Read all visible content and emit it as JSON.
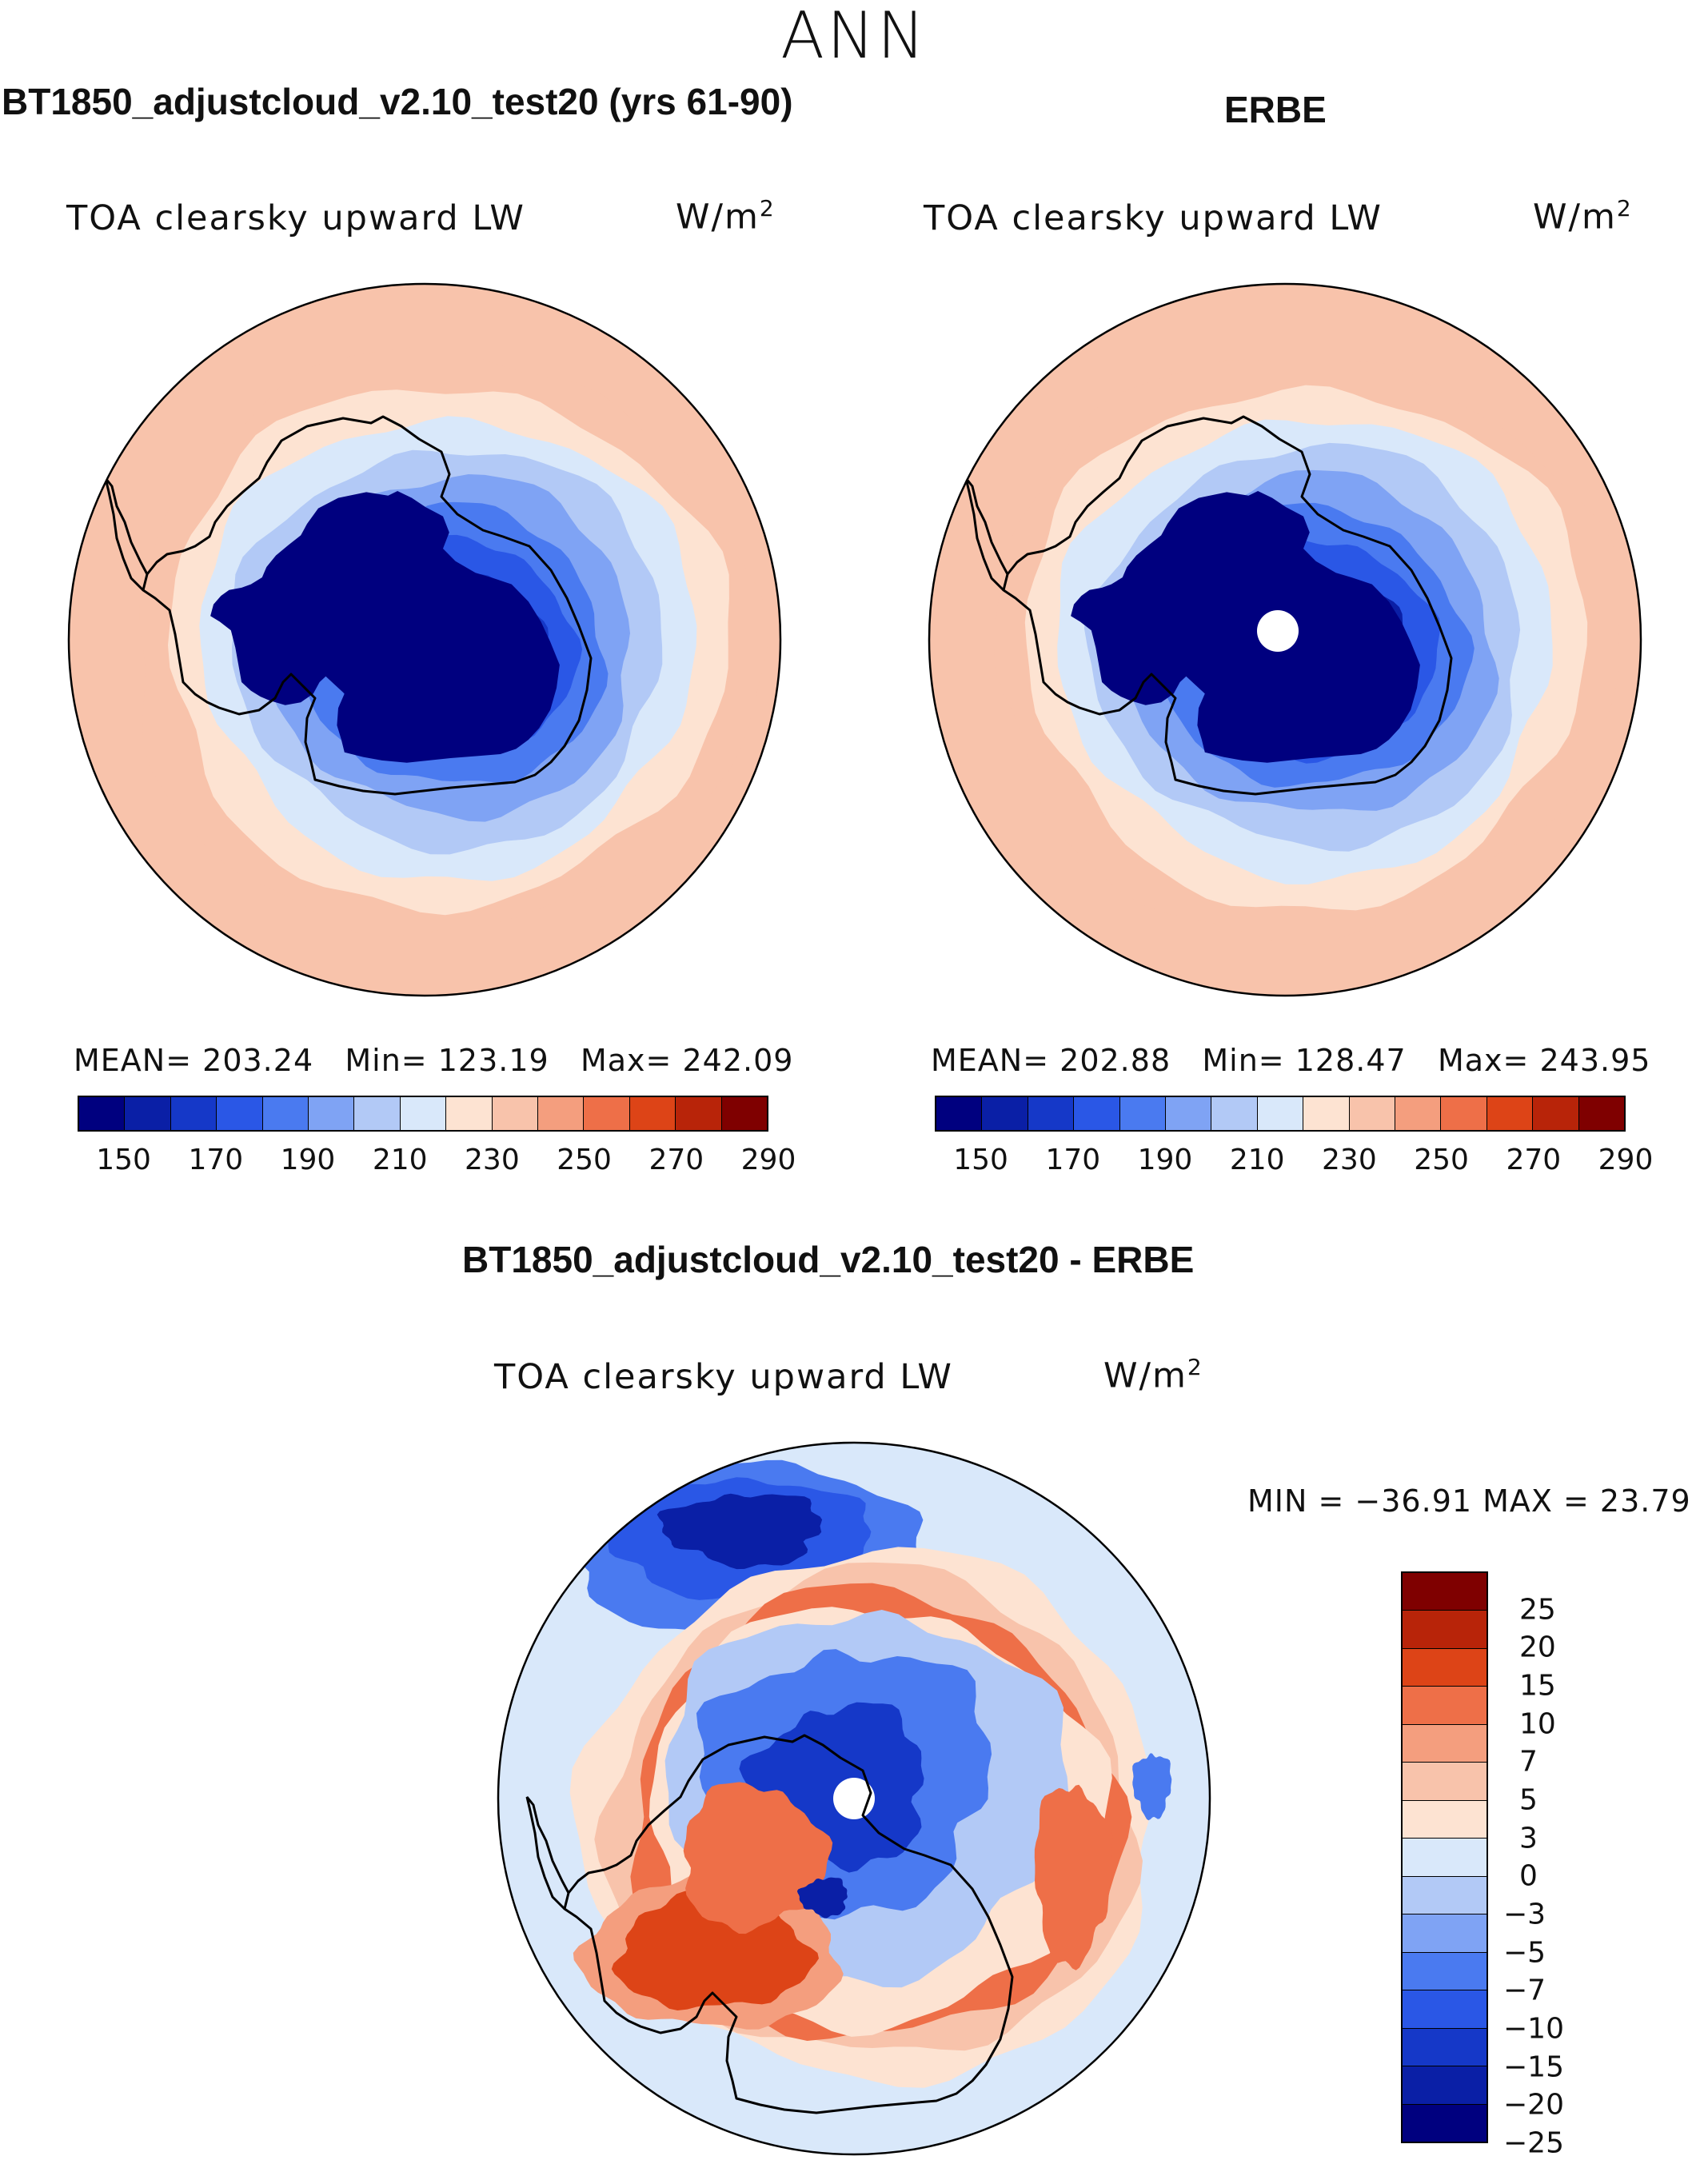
{
  "suptitle": "ANN",
  "chart_data": [
    {
      "type": "heatmap",
      "projection": "south polar stereographic",
      "title": "BT1850_adjustcloud_v2.10_test20 (yrs 61-90)",
      "variable": "TOA clearsky upward LW",
      "units": "W/m",
      "units_exp": "2",
      "stats": {
        "mean": "203.24",
        "min": "123.19",
        "max": "242.09"
      },
      "stats_labels": {
        "mean": "MEAN=",
        "min": "Min=",
        "max": "Max="
      },
      "levels": [
        150,
        160,
        170,
        180,
        190,
        200,
        210,
        220,
        230,
        240,
        250,
        260,
        270,
        280,
        290
      ],
      "colorbar_ticks": [
        "150",
        "170",
        "190",
        "210",
        "230",
        "250",
        "270",
        "290"
      ],
      "colors": [
        "#00007f",
        "#0a1fa6",
        "#1538c8",
        "#2a57e6",
        "#4a7af0",
        "#7fa3f4",
        "#b2c9f6",
        "#d9e8fa",
        "#fde3d2",
        "#f8c3ab",
        "#f49e7e",
        "#ee6f48",
        "#dd4417",
        "#b82409",
        "#7f0000"
      ],
      "rings": [
        {
          "level": 240,
          "color": "#f8c3ab"
        },
        {
          "level": 230,
          "color": "#fde3d2"
        },
        {
          "level": 220,
          "color": "#d9e8fa"
        },
        {
          "level": 210,
          "color": "#b2c9f6"
        },
        {
          "level": 200,
          "color": "#7fa3f4"
        },
        {
          "level": 190,
          "color": "#4a7af0"
        },
        {
          "level": 180,
          "color": "#2a57e6"
        },
        {
          "level": 170,
          "color": "#1538c8"
        },
        {
          "level": 150,
          "color": "#00007f"
        }
      ],
      "pole_gap": false
    },
    {
      "type": "heatmap",
      "projection": "south polar stereographic",
      "title": "ERBE",
      "variable": "TOA clearsky upward LW",
      "units": "W/m",
      "units_exp": "2",
      "stats": {
        "mean": "202.88",
        "min": "128.47",
        "max": "243.95"
      },
      "stats_labels": {
        "mean": "MEAN=",
        "min": "Min=",
        "max": "Max="
      },
      "levels": [
        150,
        160,
        170,
        180,
        190,
        200,
        210,
        220,
        230,
        240,
        250,
        260,
        270,
        280,
        290
      ],
      "colorbar_ticks": [
        "150",
        "170",
        "190",
        "210",
        "230",
        "250",
        "270",
        "290"
      ],
      "colors": [
        "#00007f",
        "#0a1fa6",
        "#1538c8",
        "#2a57e6",
        "#4a7af0",
        "#7fa3f4",
        "#b2c9f6",
        "#d9e8fa",
        "#fde3d2",
        "#f8c3ab",
        "#f49e7e",
        "#ee6f48",
        "#dd4417",
        "#b82409",
        "#7f0000"
      ],
      "rings": [
        {
          "level": 240,
          "color": "#f8c3ab"
        },
        {
          "level": 230,
          "color": "#fde3d2"
        },
        {
          "level": 220,
          "color": "#d9e8fa"
        },
        {
          "level": 210,
          "color": "#b2c9f6"
        },
        {
          "level": 200,
          "color": "#7fa3f4"
        },
        {
          "level": 190,
          "color": "#4a7af0"
        },
        {
          "level": 180,
          "color": "#2a57e6"
        },
        {
          "level": 160,
          "color": "#0a1fa6"
        },
        {
          "level": 150,
          "color": "#00007f"
        }
      ],
      "pole_gap": true
    },
    {
      "type": "heatmap",
      "projection": "south polar stereographic",
      "title": "BT1850_adjustcloud_v2.10_test20 - ERBE",
      "variable": "TOA clearsky upward LW",
      "units": "W/m",
      "units_exp": "2",
      "minmax_text": "MIN = −36.91 MAX =   23.79",
      "min": -36.91,
      "max": 23.79,
      "levels": [
        -25,
        -20,
        -15,
        -10,
        -7,
        -5,
        -3,
        0,
        3,
        5,
        7,
        10,
        15,
        20,
        25
      ],
      "colorbar_ticks": [
        "25",
        "20",
        "15",
        "10",
        "7",
        "5",
        "3",
        "0",
        "−3",
        "−5",
        "−7",
        "−10",
        "−15",
        "−20",
        "−25"
      ],
      "colors": [
        "#7f0000",
        "#b82409",
        "#dd4417",
        "#ee6f48",
        "#f49e7e",
        "#f8c3ab",
        "#fde3d2",
        "#d9e8fa",
        "#b2c9f6",
        "#7fa3f4",
        "#4a7af0",
        "#2a57e6",
        "#1538c8",
        "#0a1fa6",
        "#00007f"
      ],
      "background_level": "-3 to 0",
      "pole_gap": true
    }
  ]
}
